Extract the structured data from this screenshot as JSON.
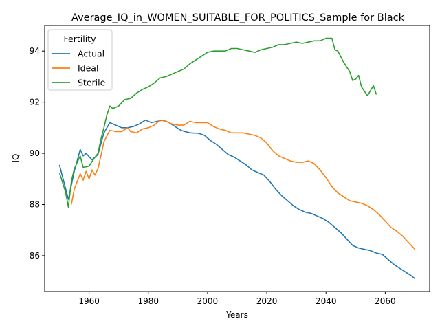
{
  "chart_data": {
    "type": "line",
    "title": "Average_IQ_in_WOMEN_SUITABLE_FOR_POLITICS_Sample for Black",
    "xlabel": "Years",
    "ylabel": "IQ",
    "xlim": [
      1945,
      2075
    ],
    "ylim": [
      84.6,
      95.0
    ],
    "xticks": [
      1960,
      1980,
      2000,
      2020,
      2040,
      2060
    ],
    "yticks": [
      86,
      88,
      90,
      92,
      94
    ],
    "grid": false,
    "legend": {
      "title": "Fertility",
      "placement": "top-left"
    },
    "series": [
      {
        "name": "Actual",
        "color": "#1f77b4",
        "points": [
          [
            1950,
            89.55
          ],
          [
            1953,
            88.2
          ],
          [
            1955,
            89.3
          ],
          [
            1957,
            90.15
          ],
          [
            1958,
            89.9
          ],
          [
            1959,
            90.0
          ],
          [
            1961,
            89.75
          ],
          [
            1963,
            89.95
          ],
          [
            1965,
            90.8
          ],
          [
            1967,
            91.2
          ],
          [
            1969,
            91.1
          ],
          [
            1971,
            91.0
          ],
          [
            1973,
            91.0
          ],
          [
            1975,
            91.05
          ],
          [
            1977,
            91.15
          ],
          [
            1979,
            91.3
          ],
          [
            1981,
            91.2
          ],
          [
            1983,
            91.25
          ],
          [
            1985,
            91.3
          ],
          [
            1987,
            91.2
          ],
          [
            1989,
            91.05
          ],
          [
            1991,
            90.9
          ],
          [
            1994,
            90.8
          ],
          [
            1997,
            90.78
          ],
          [
            1999,
            90.7
          ],
          [
            2001,
            90.5
          ],
          [
            2003,
            90.35
          ],
          [
            2005,
            90.15
          ],
          [
            2007,
            89.95
          ],
          [
            2009,
            89.85
          ],
          [
            2011,
            89.7
          ],
          [
            2013,
            89.55
          ],
          [
            2015,
            89.35
          ],
          [
            2017,
            89.25
          ],
          [
            2019,
            89.15
          ],
          [
            2021,
            88.9
          ],
          [
            2023,
            88.6
          ],
          [
            2025,
            88.35
          ],
          [
            2027,
            88.15
          ],
          [
            2029,
            87.95
          ],
          [
            2031,
            87.8
          ],
          [
            2033,
            87.7
          ],
          [
            2035,
            87.65
          ],
          [
            2037,
            87.55
          ],
          [
            2039,
            87.45
          ],
          [
            2041,
            87.3
          ],
          [
            2043,
            87.1
          ],
          [
            2045,
            86.9
          ],
          [
            2047,
            86.65
          ],
          [
            2049,
            86.4
          ],
          [
            2051,
            86.3
          ],
          [
            2053,
            86.25
          ],
          [
            2055,
            86.2
          ],
          [
            2057,
            86.1
          ],
          [
            2059,
            86.05
          ],
          [
            2061,
            85.85
          ],
          [
            2063,
            85.65
          ],
          [
            2065,
            85.5
          ],
          [
            2067,
            85.35
          ],
          [
            2069,
            85.2
          ],
          [
            2070,
            85.1
          ]
        ]
      },
      {
        "name": "Ideal",
        "color": "#ff7f0e",
        "points": [
          [
            1954,
            88.0
          ],
          [
            1955,
            88.6
          ],
          [
            1956,
            88.9
          ],
          [
            1957,
            89.2
          ],
          [
            1958,
            88.95
          ],
          [
            1959,
            89.3
          ],
          [
            1960,
            89.0
          ],
          [
            1961,
            89.35
          ],
          [
            1962,
            89.15
          ],
          [
            1963,
            89.4
          ],
          [
            1964,
            89.9
          ],
          [
            1965,
            90.45
          ],
          [
            1967,
            90.9
          ],
          [
            1969,
            90.85
          ],
          [
            1971,
            90.85
          ],
          [
            1973,
            91.0
          ],
          [
            1974,
            90.85
          ],
          [
            1976,
            90.8
          ],
          [
            1978,
            90.95
          ],
          [
            1980,
            91.0
          ],
          [
            1982,
            91.1
          ],
          [
            1984,
            91.3
          ],
          [
            1986,
            91.25
          ],
          [
            1988,
            91.15
          ],
          [
            1990,
            91.1
          ],
          [
            1992,
            91.1
          ],
          [
            1994,
            91.25
          ],
          [
            1996,
            91.2
          ],
          [
            1998,
            91.2
          ],
          [
            2000,
            91.2
          ],
          [
            2002,
            91.05
          ],
          [
            2004,
            90.95
          ],
          [
            2006,
            90.9
          ],
          [
            2008,
            90.8
          ],
          [
            2010,
            90.8
          ],
          [
            2012,
            90.8
          ],
          [
            2014,
            90.75
          ],
          [
            2016,
            90.7
          ],
          [
            2018,
            90.6
          ],
          [
            2020,
            90.4
          ],
          [
            2022,
            90.1
          ],
          [
            2024,
            89.9
          ],
          [
            2026,
            89.8
          ],
          [
            2028,
            89.7
          ],
          [
            2030,
            89.65
          ],
          [
            2032,
            89.65
          ],
          [
            2034,
            89.7
          ],
          [
            2036,
            89.6
          ],
          [
            2038,
            89.35
          ],
          [
            2040,
            89.05
          ],
          [
            2042,
            88.7
          ],
          [
            2044,
            88.45
          ],
          [
            2046,
            88.3
          ],
          [
            2048,
            88.15
          ],
          [
            2050,
            88.1
          ],
          [
            2052,
            88.05
          ],
          [
            2054,
            87.95
          ],
          [
            2056,
            87.8
          ],
          [
            2058,
            87.6
          ],
          [
            2060,
            87.35
          ],
          [
            2062,
            87.1
          ],
          [
            2064,
            86.95
          ],
          [
            2066,
            86.75
          ],
          [
            2068,
            86.5
          ],
          [
            2070,
            86.25
          ]
        ]
      },
      {
        "name": "Sterile",
        "color": "#2ca02c",
        "points": [
          [
            1950,
            89.25
          ],
          [
            1952,
            88.5
          ],
          [
            1953,
            87.9
          ],
          [
            1954,
            88.9
          ],
          [
            1955,
            89.4
          ],
          [
            1957,
            89.9
          ],
          [
            1958,
            89.45
          ],
          [
            1960,
            89.5
          ],
          [
            1962,
            89.85
          ],
          [
            1963,
            90.0
          ],
          [
            1964,
            90.55
          ],
          [
            1965,
            91.0
          ],
          [
            1966,
            91.5
          ],
          [
            1967,
            91.85
          ],
          [
            1968,
            91.75
          ],
          [
            1970,
            91.85
          ],
          [
            1972,
            92.1
          ],
          [
            1974,
            92.15
          ],
          [
            1976,
            92.35
          ],
          [
            1978,
            92.5
          ],
          [
            1980,
            92.6
          ],
          [
            1982,
            92.75
          ],
          [
            1984,
            92.95
          ],
          [
            1986,
            93.0
          ],
          [
            1988,
            93.1
          ],
          [
            1990,
            93.2
          ],
          [
            1992,
            93.3
          ],
          [
            1994,
            93.5
          ],
          [
            1996,
            93.65
          ],
          [
            1998,
            93.8
          ],
          [
            2000,
            93.95
          ],
          [
            2002,
            94.0
          ],
          [
            2004,
            94.0
          ],
          [
            2006,
            94.0
          ],
          [
            2008,
            94.1
          ],
          [
            2010,
            94.1
          ],
          [
            2012,
            94.05
          ],
          [
            2014,
            94.0
          ],
          [
            2016,
            93.95
          ],
          [
            2018,
            94.05
          ],
          [
            2020,
            94.1
          ],
          [
            2022,
            94.15
          ],
          [
            2024,
            94.25
          ],
          [
            2026,
            94.25
          ],
          [
            2028,
            94.3
          ],
          [
            2030,
            94.35
          ],
          [
            2032,
            94.3
          ],
          [
            2034,
            94.35
          ],
          [
            2036,
            94.4
          ],
          [
            2038,
            94.4
          ],
          [
            2040,
            94.5
          ],
          [
            2042,
            94.5
          ],
          [
            2043,
            94.05
          ],
          [
            2044,
            94.0
          ],
          [
            2046,
            93.55
          ],
          [
            2048,
            93.2
          ],
          [
            2049,
            92.85
          ],
          [
            2050,
            92.9
          ],
          [
            2051,
            93.05
          ],
          [
            2052,
            92.6
          ],
          [
            2054,
            92.25
          ],
          [
            2056,
            92.65
          ],
          [
            2057,
            92.3
          ]
        ]
      }
    ]
  }
}
